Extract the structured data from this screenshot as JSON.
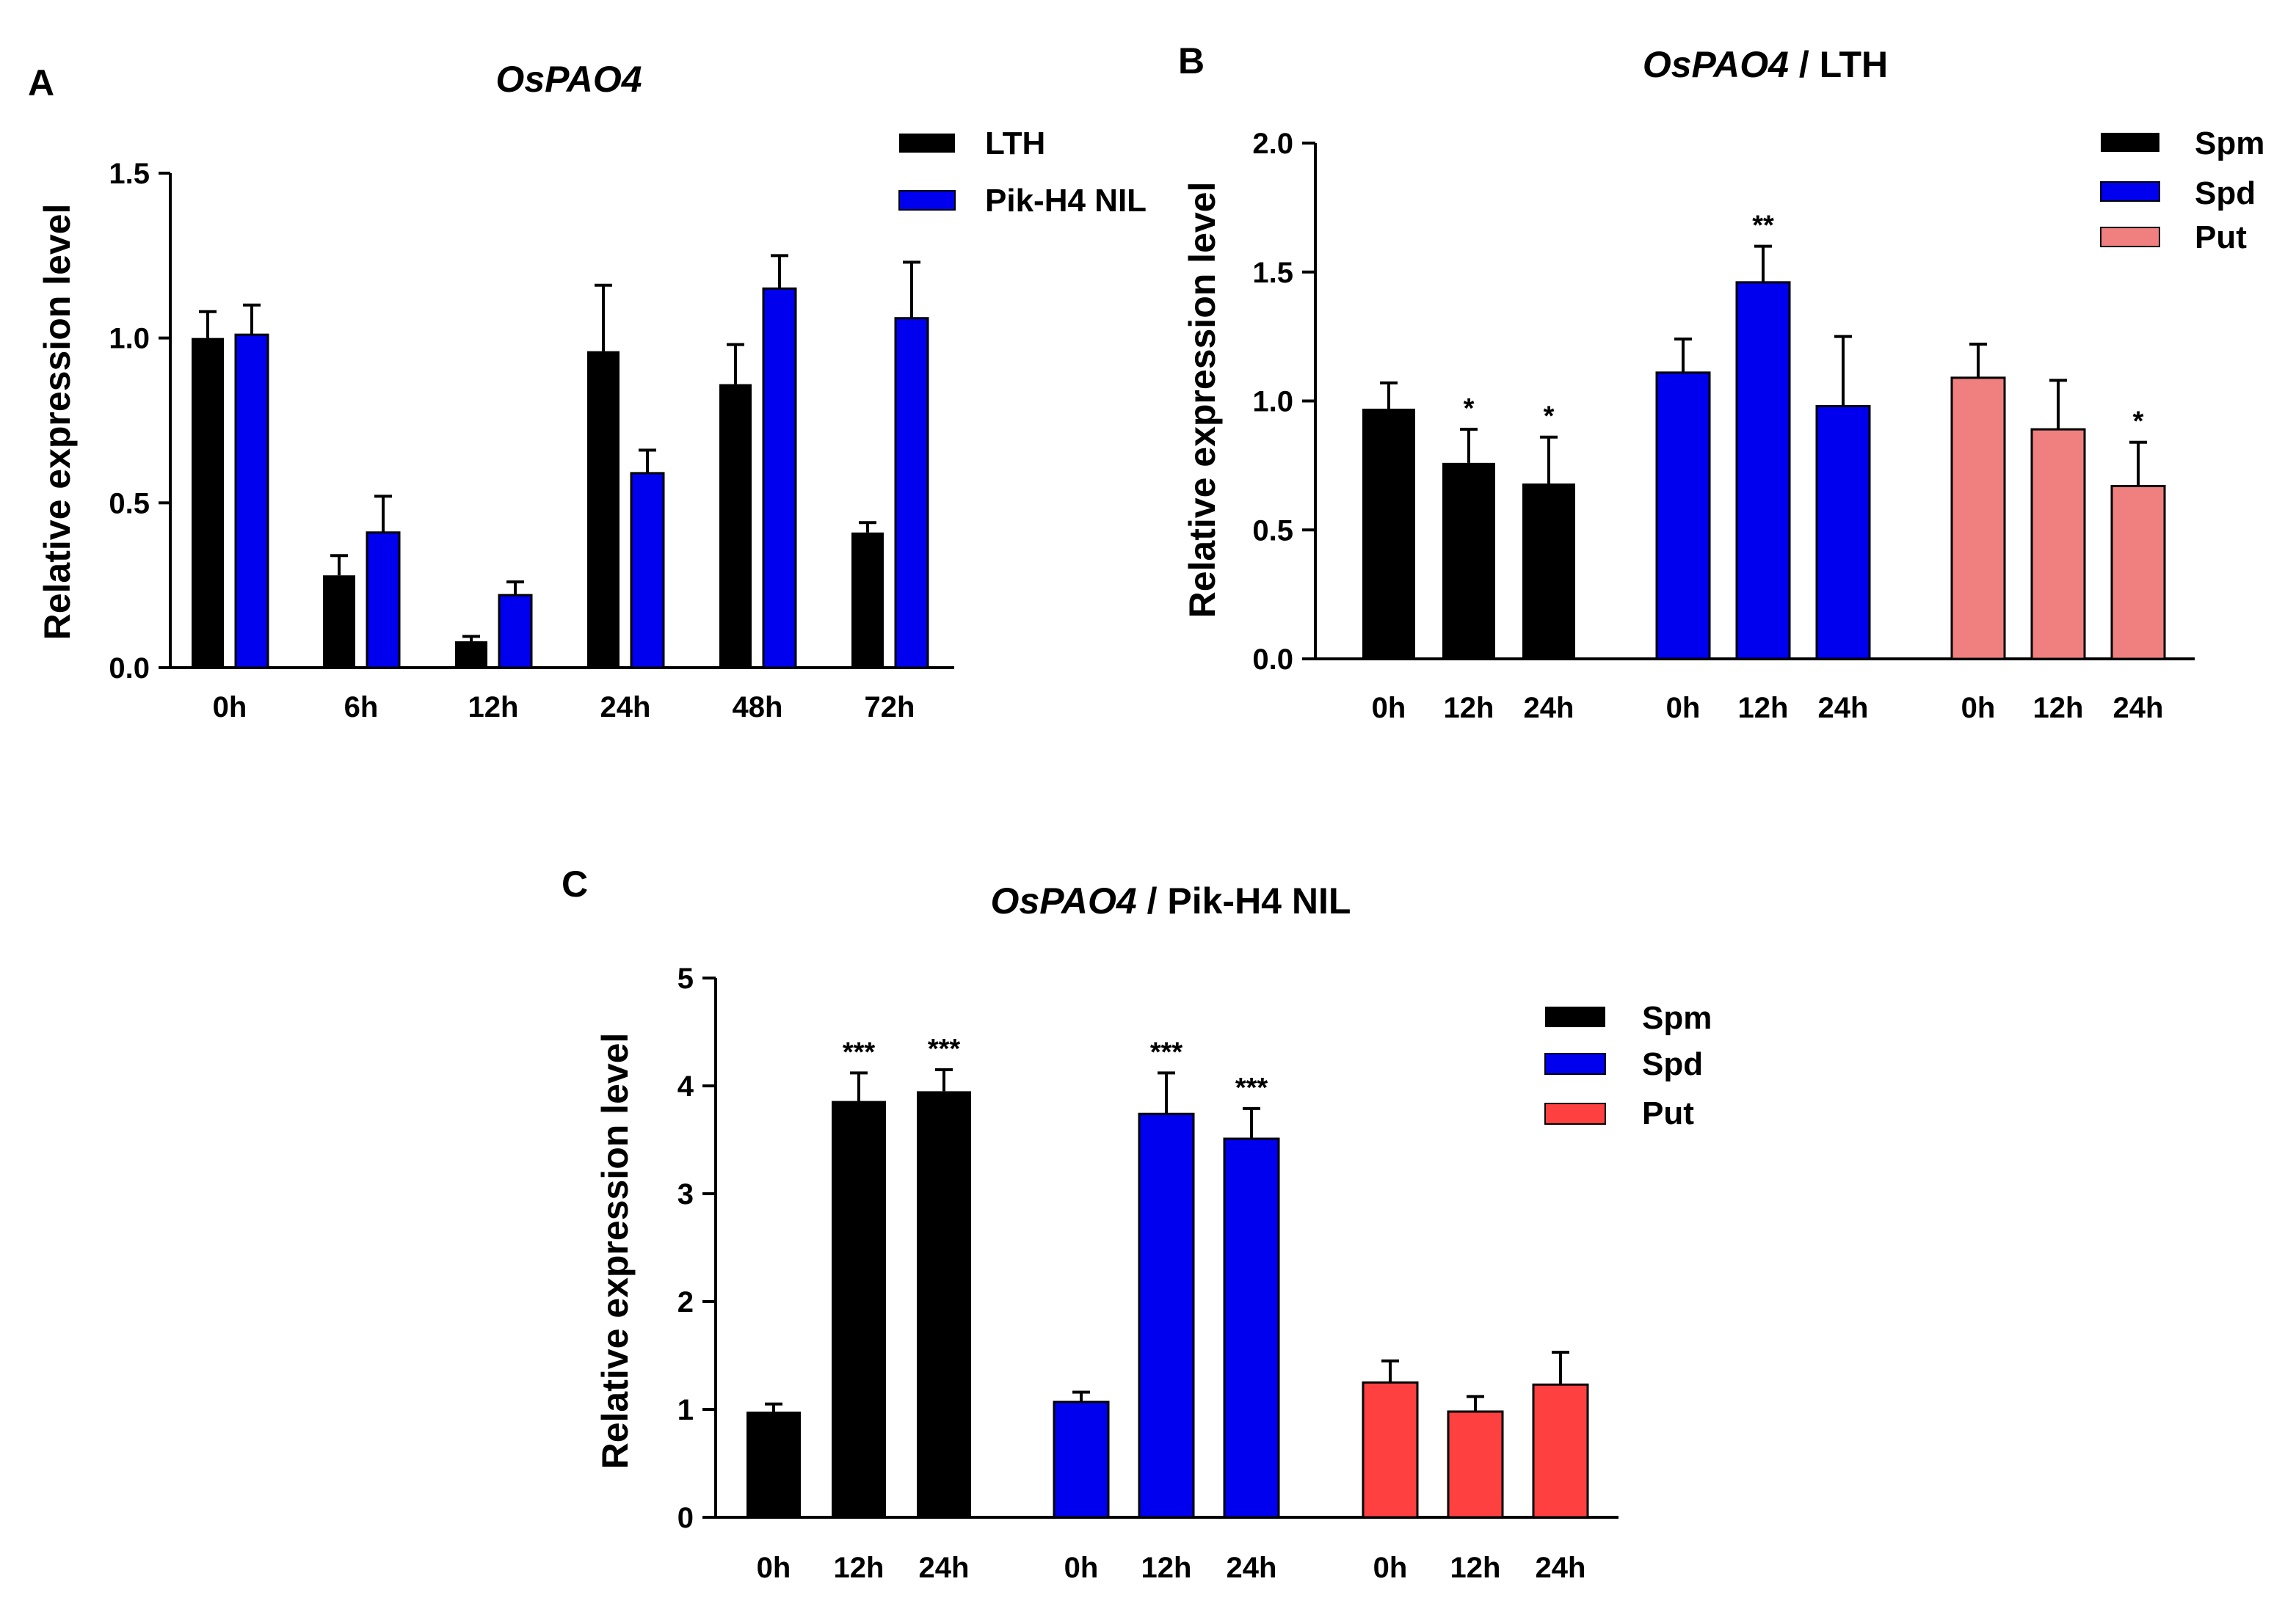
{
  "chart_data": [
    {
      "type": "bar",
      "panel": "A",
      "title_gene": "OsPAO4",
      "title_suffix": "",
      "ylabel": "Relative expression level",
      "ylim": [
        0,
        1.5
      ],
      "yticks": [
        "0.0",
        "0.5",
        "1.0",
        "1.5"
      ],
      "categories": [
        "0h",
        "6h",
        "12h",
        "24h",
        "48h",
        "72h"
      ],
      "series": [
        {
          "name": "LTH",
          "color": "#000000",
          "values": [
            1.0,
            0.28,
            0.08,
            0.96,
            0.86,
            0.41
          ],
          "errors": [
            0.08,
            0.06,
            0.015,
            0.2,
            0.12,
            0.03
          ]
        },
        {
          "name": "Pik-H4 NIL",
          "color": "#0000ee",
          "values": [
            1.01,
            0.41,
            0.22,
            0.59,
            1.15,
            1.06
          ],
          "errors": [
            0.09,
            0.11,
            0.04,
            0.07,
            0.1,
            0.17
          ]
        }
      ],
      "legend_position": "top-right"
    },
    {
      "type": "bar",
      "panel": "B",
      "title_gene": "OsPAO4",
      "title_suffix": " / LTH",
      "ylabel": "Relative expression level",
      "ylim": [
        0,
        2.0
      ],
      "yticks": [
        "0.0",
        "0.5",
        "1.0",
        "1.5",
        "2.0"
      ],
      "categories": [
        "0h",
        "12h",
        "24h"
      ],
      "series": [
        {
          "name": "Spm",
          "color": "#000000",
          "values": [
            0.97,
            0.76,
            0.68
          ],
          "errors": [
            0.1,
            0.13,
            0.18
          ],
          "sig": [
            "",
            "*",
            "*"
          ]
        },
        {
          "name": "Spd",
          "color": "#0000ee",
          "values": [
            1.11,
            1.46,
            0.98
          ],
          "errors": [
            0.13,
            0.14,
            0.27
          ],
          "sig": [
            "",
            "**",
            ""
          ]
        },
        {
          "name": "Put",
          "color": "#f08080",
          "values": [
            1.09,
            0.89,
            0.67
          ],
          "errors": [
            0.13,
            0.19,
            0.17
          ],
          "sig": [
            "",
            "",
            "*"
          ]
        }
      ],
      "legend_position": "top-right"
    },
    {
      "type": "bar",
      "panel": "C",
      "title_gene": "OsPAO4",
      "title_suffix": " / Pik-H4 NIL",
      "ylabel": "Relative expression level",
      "ylim": [
        0,
        5
      ],
      "yticks": [
        "0",
        "1",
        "2",
        "3",
        "4",
        "5"
      ],
      "categories": [
        "0h",
        "12h",
        "24h"
      ],
      "series": [
        {
          "name": "Spm",
          "color": "#000000",
          "values": [
            0.98,
            3.86,
            3.95
          ],
          "errors": [
            0.07,
            0.26,
            0.2
          ],
          "sig": [
            "",
            "***",
            "***"
          ]
        },
        {
          "name": "Spd",
          "color": "#0000ee",
          "values": [
            1.07,
            3.74,
            3.51
          ],
          "errors": [
            0.09,
            0.38,
            0.28
          ],
          "sig": [
            "",
            "***",
            "***"
          ]
        },
        {
          "name": "Put",
          "color": "#ff4040",
          "values": [
            1.25,
            0.98,
            1.23
          ],
          "errors": [
            0.2,
            0.14,
            0.3
          ],
          "sig": [
            "",
            "",
            ""
          ]
        }
      ],
      "legend_position": "top-right"
    }
  ]
}
